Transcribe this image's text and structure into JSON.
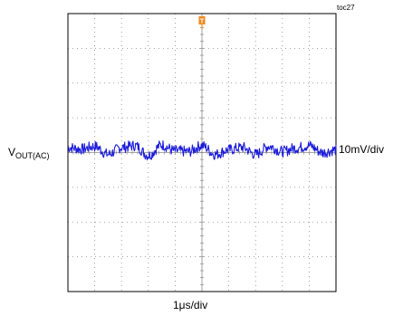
{
  "figure_id": "toc27",
  "trace_label": {
    "main": "V",
    "sub": "OUT(AC)"
  },
  "vertical_scale": "10mV/div",
  "horizontal_scale": "1μs/div",
  "trigger_marker": "T",
  "colors": {
    "trace": "#1a1adb",
    "trigger": "#f08a1e",
    "grid": "#8a8a8a",
    "frame": "#000000"
  },
  "chart_data": {
    "type": "line",
    "title": "",
    "xlabel": "1μs/div",
    "ylabel": "10mV/div",
    "x_unit": "μs",
    "y_unit": "mV",
    "xlim": [
      -5,
      5
    ],
    "ylim": [
      -40,
      40
    ],
    "grid": true,
    "grid_divisions": {
      "x": 10,
      "y": 8
    },
    "series": [
      {
        "name": "",
        "x": [
          -5.0,
          -4.5,
          -4.0,
          -3.5,
          -3.0,
          -2.5,
          -2.0,
          -1.5,
          -1.0,
          -0.5,
          0.0,
          0.5,
          1.0,
          1.5,
          2.0,
          2.5,
          3.0,
          3.5,
          4.0,
          4.5,
          5.0
        ],
        "y": [
          1.5,
          1.0,
          1.8,
          -0.5,
          1.5,
          2.0,
          -0.8,
          2.2,
          0.5,
          0.3,
          2.0,
          -0.5,
          0.8,
          1.5,
          -0.5,
          1.8,
          0.3,
          1.3,
          2.0,
          0.0,
          0.8
        ]
      }
    ]
  }
}
